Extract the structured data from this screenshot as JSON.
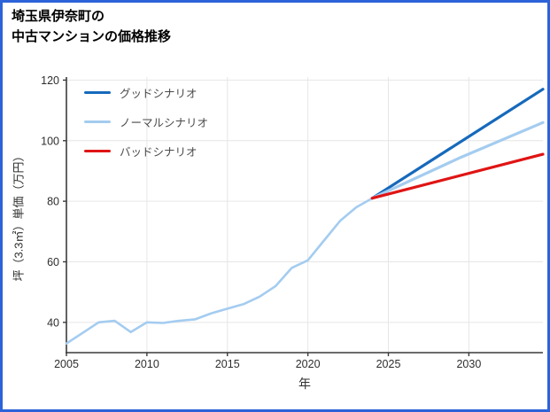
{
  "page": {
    "background": "#ffffff",
    "border_color": "#2c63d8"
  },
  "title": {
    "line1": "埼玉県伊奈町の",
    "line2": "中古マンションの価格推移"
  },
  "chart_data": {
    "type": "line",
    "title": "埼玉県伊奈町の中古マンションの価格推移",
    "xlabel": "年",
    "ylabel": "坪（3.3㎡）単価（万円）",
    "xlim": [
      2005,
      2034.6
    ],
    "ylim": [
      30,
      121
    ],
    "xticks": [
      2005,
      2010,
      2015,
      2020,
      2025,
      2030
    ],
    "yticks": [
      40,
      60,
      80,
      100,
      120
    ],
    "grid": true,
    "legend_position": "top-left",
    "legend": [
      {
        "id": "good",
        "label": "グッドシナリオ",
        "color": "#1669bb"
      },
      {
        "id": "normal",
        "label": "ノーマルシナリオ",
        "color": "#a4ccf0"
      },
      {
        "id": "bad",
        "label": "バッドシナリオ",
        "color": "#e01414"
      }
    ],
    "style": {
      "grid_color": "#e6e6e6",
      "axis_color": "#3a3a3a",
      "tick_color": "#2e2e2e"
    },
    "series": [
      {
        "id": "history",
        "color": "#a4ccf0",
        "width": 2.6,
        "x": [
          2005,
          2006,
          2007,
          2008,
          2009,
          2010,
          2011,
          2012,
          2013,
          2014,
          2015,
          2016,
          2017,
          2018,
          2019,
          2020,
          2021,
          2022,
          2023,
          2024
        ],
        "values": [
          33,
          36.5,
          40,
          40.5,
          36.8,
          40,
          39.8,
          40.5,
          41,
          43,
          44.5,
          46,
          48.5,
          52,
          58,
          60.5,
          67,
          73.5,
          78,
          81
        ]
      },
      {
        "id": "good",
        "label": "グッドシナリオ",
        "color": "#1669bb",
        "width": 3.2,
        "x": [
          2024,
          2034.6
        ],
        "values": [
          81,
          117
        ]
      },
      {
        "id": "normal",
        "label": "ノーマルシナリオ",
        "color": "#a4ccf0",
        "width": 3.2,
        "x": [
          2024,
          2029.5,
          2034.6
        ],
        "values": [
          81,
          94.5,
          106
        ]
      },
      {
        "id": "bad",
        "label": "バッドシナリオ",
        "color": "#e01414",
        "width": 3.2,
        "x": [
          2024,
          2034.6
        ],
        "values": [
          81,
          95.5
        ]
      }
    ]
  }
}
